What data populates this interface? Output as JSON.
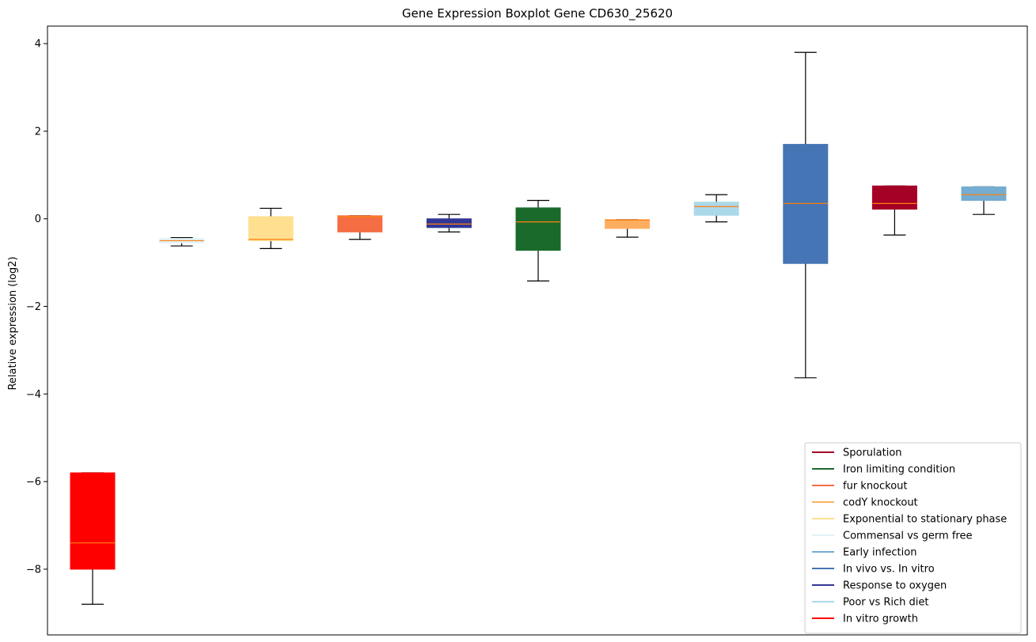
{
  "chart_data": {
    "type": "boxplot",
    "title": "Gene Expression Boxplot Gene CD630_25620",
    "xlabel": "",
    "ylabel": "Relative expression (log2)",
    "ylim": [
      -9.5,
      4.4
    ],
    "yticks": [
      -8,
      -6,
      -4,
      -2,
      0,
      2,
      4
    ],
    "ytick_labels": [
      "−8",
      "−6",
      "−4",
      "−2",
      "0",
      "2",
      "4"
    ],
    "grid": false,
    "legend_position": "lower-right",
    "boxes": [
      {
        "name": "In vitro growth",
        "color": "#ff0000",
        "whisker_low": -8.8,
        "q1": -8.0,
        "median": -7.4,
        "q3": -5.8,
        "whisker_high": -5.8
      },
      {
        "name": "Commensal vs germ free",
        "color": "#e0f3f8",
        "whisker_low": -0.62,
        "q1": -0.55,
        "median": -0.5,
        "q3": -0.45,
        "whisker_high": -0.43
      },
      {
        "name": "Exponential to stationary phase",
        "color": "#fee090",
        "whisker_low": -0.68,
        "q1": -0.5,
        "median": -0.47,
        "q3": 0.05,
        "whisker_high": 0.24
      },
      {
        "name": "fur knockout",
        "color": "#f46d43",
        "whisker_low": -0.47,
        "q1": -0.3,
        "median": 0.05,
        "q3": 0.07,
        "whisker_high": 0.07
      },
      {
        "name": "Response to oxygen",
        "color": "#313695",
        "whisker_low": -0.3,
        "q1": -0.2,
        "median": -0.12,
        "q3": 0.0,
        "whisker_high": 0.1
      },
      {
        "name": "Iron limiting condition",
        "color": "#1a6b2b",
        "whisker_low": -1.42,
        "q1": -0.72,
        "median": -0.07,
        "q3": 0.25,
        "whisker_high": 0.42
      },
      {
        "name": "codY knockout",
        "color": "#fdae61",
        "whisker_low": -0.42,
        "q1": -0.22,
        "median": -0.03,
        "q3": -0.02,
        "whisker_high": -0.02
      },
      {
        "name": "Poor vs Rich diet",
        "color": "#abd9e9",
        "whisker_low": -0.07,
        "q1": 0.08,
        "median": 0.28,
        "q3": 0.38,
        "whisker_high": 0.55
      },
      {
        "name": "In vivo vs. In vitro",
        "color": "#4575b4",
        "whisker_low": -3.63,
        "q1": -1.02,
        "median": 0.35,
        "q3": 1.7,
        "whisker_high": 3.8
      },
      {
        "name": "Sporulation",
        "color": "#a50026",
        "whisker_low": -0.37,
        "q1": 0.22,
        "median": 0.35,
        "q3": 0.75,
        "whisker_high": 0.75
      },
      {
        "name": "Early infection",
        "color": "#74add1",
        "whisker_low": 0.1,
        "q1": 0.42,
        "median": 0.55,
        "q3": 0.73,
        "whisker_high": 0.73
      }
    ],
    "median_color": "#ff7f0e",
    "legend": [
      {
        "label": "Sporulation",
        "color": "#a50026"
      },
      {
        "label": "Iron limiting condition",
        "color": "#1a6b2b"
      },
      {
        "label": "fur knockout",
        "color": "#f46d43"
      },
      {
        "label": "codY knockout",
        "color": "#fdae61"
      },
      {
        "label": "Exponential to stationary phase",
        "color": "#fee090"
      },
      {
        "label": "Commensal vs germ free",
        "color": "#e0f3f8"
      },
      {
        "label": "Early infection",
        "color": "#74add1"
      },
      {
        "label": "In vivo vs. In vitro",
        "color": "#4575b4"
      },
      {
        "label": "Response to oxygen",
        "color": "#313695"
      },
      {
        "label": "Poor vs Rich diet",
        "color": "#abd9e9"
      },
      {
        "label": "In vitro growth",
        "color": "#ff0000"
      }
    ]
  }
}
